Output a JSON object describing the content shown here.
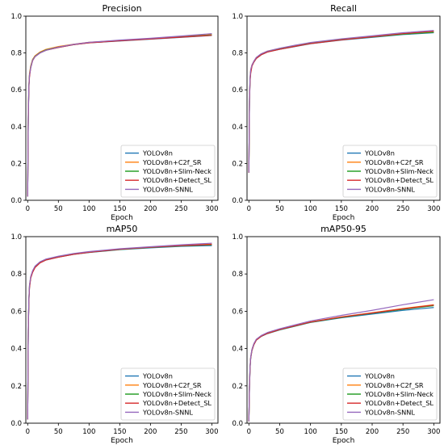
{
  "chart_data": [
    {
      "type": "line",
      "title": "Precision",
      "xlabel": "Epoch",
      "ylabel": "",
      "xlim": [
        -3,
        310
      ],
      "ylim": [
        0,
        1.0
      ],
      "xticks": [
        0,
        50,
        100,
        150,
        200,
        250,
        300
      ],
      "yticks": [
        0.0,
        0.2,
        0.4,
        0.6,
        0.8,
        1.0
      ],
      "legend": "lower-right",
      "x": [
        0,
        1,
        2,
        3,
        5,
        8,
        12,
        20,
        30,
        50,
        75,
        100,
        150,
        200,
        250,
        300
      ],
      "series": [
        {
          "name": "YOLOv8n",
          "color": "#1f77b4",
          "values": [
            0.02,
            0.45,
            0.62,
            0.68,
            0.72,
            0.76,
            0.78,
            0.8,
            0.815,
            0.83,
            0.845,
            0.855,
            0.865,
            0.875,
            0.885,
            0.895
          ]
        },
        {
          "name": "YOLOv8n+C2f_SR",
          "color": "#ff7f0e",
          "values": [
            0.02,
            0.47,
            0.63,
            0.69,
            0.73,
            0.765,
            0.785,
            0.805,
            0.82,
            0.835,
            0.848,
            0.858,
            0.868,
            0.878,
            0.889,
            0.9
          ]
        },
        {
          "name": "YOLOv8n+Slim-Neck",
          "color": "#2ca02c",
          "values": [
            0.02,
            0.46,
            0.62,
            0.68,
            0.725,
            0.762,
            0.782,
            0.802,
            0.817,
            0.832,
            0.846,
            0.856,
            0.867,
            0.877,
            0.887,
            0.898
          ]
        },
        {
          "name": "YOLOv8n+Detect_SL",
          "color": "#d62728",
          "values": [
            0.02,
            0.44,
            0.61,
            0.67,
            0.72,
            0.758,
            0.78,
            0.8,
            0.815,
            0.83,
            0.845,
            0.855,
            0.866,
            0.876,
            0.886,
            0.896
          ]
        },
        {
          "name": "YOLOv8n-SNNL",
          "color": "#9467bd",
          "values": [
            0.02,
            0.45,
            0.62,
            0.68,
            0.72,
            0.76,
            0.78,
            0.8,
            0.815,
            0.832,
            0.847,
            0.858,
            0.87,
            0.88,
            0.892,
            0.905
          ]
        }
      ]
    },
    {
      "type": "line",
      "title": "Recall",
      "xlabel": "Epoch",
      "ylabel": "",
      "xlim": [
        -3,
        310
      ],
      "ylim": [
        0,
        1.0
      ],
      "xticks": [
        0,
        50,
        100,
        150,
        200,
        250,
        300
      ],
      "yticks": [
        0.0,
        0.2,
        0.4,
        0.6,
        0.8,
        1.0
      ],
      "legend": "lower-right",
      "x": [
        0,
        1,
        2,
        3,
        5,
        8,
        12,
        20,
        30,
        50,
        75,
        100,
        150,
        200,
        250,
        300
      ],
      "series": [
        {
          "name": "YOLOv8n",
          "color": "#1f77b4",
          "values": [
            0.15,
            0.55,
            0.66,
            0.7,
            0.73,
            0.75,
            0.77,
            0.79,
            0.805,
            0.82,
            0.835,
            0.85,
            0.87,
            0.885,
            0.9,
            0.91
          ]
        },
        {
          "name": "YOLOv8n+C2f_SR",
          "color": "#ff7f0e",
          "values": [
            0.15,
            0.56,
            0.67,
            0.71,
            0.735,
            0.755,
            0.775,
            0.795,
            0.81,
            0.825,
            0.84,
            0.855,
            0.875,
            0.89,
            0.905,
            0.915
          ]
        },
        {
          "name": "YOLOv8n+Slim-Neck",
          "color": "#2ca02c",
          "values": [
            0.15,
            0.55,
            0.66,
            0.7,
            0.732,
            0.752,
            0.772,
            0.792,
            0.807,
            0.822,
            0.837,
            0.852,
            0.872,
            0.887,
            0.902,
            0.912
          ]
        },
        {
          "name": "YOLOv8n+Detect_SL",
          "color": "#d62728",
          "values": [
            0.15,
            0.54,
            0.65,
            0.69,
            0.728,
            0.75,
            0.77,
            0.79,
            0.805,
            0.82,
            0.836,
            0.851,
            0.871,
            0.888,
            0.905,
            0.918
          ]
        },
        {
          "name": "YOLOv8n-SNNL",
          "color": "#9467bd",
          "values": [
            0.15,
            0.56,
            0.67,
            0.71,
            0.735,
            0.755,
            0.776,
            0.796,
            0.81,
            0.826,
            0.842,
            0.857,
            0.877,
            0.893,
            0.91,
            0.922
          ]
        }
      ]
    },
    {
      "type": "line",
      "title": "mAP50",
      "xlabel": "Epoch",
      "ylabel": "",
      "xlim": [
        -3,
        310
      ],
      "ylim": [
        0,
        1.0
      ],
      "xticks": [
        0,
        50,
        100,
        150,
        200,
        250,
        300
      ],
      "yticks": [
        0.0,
        0.2,
        0.4,
        0.6,
        0.8,
        1.0
      ],
      "legend": "lower-right",
      "x": [
        0,
        1,
        2,
        3,
        5,
        8,
        12,
        20,
        30,
        50,
        75,
        100,
        150,
        200,
        250,
        300
      ],
      "series": [
        {
          "name": "YOLOv8n",
          "color": "#1f77b4",
          "values": [
            0.02,
            0.5,
            0.66,
            0.73,
            0.78,
            0.81,
            0.835,
            0.86,
            0.875,
            0.89,
            0.905,
            0.915,
            0.93,
            0.94,
            0.948,
            0.952
          ]
        },
        {
          "name": "YOLOv8n+C2f_SR",
          "color": "#ff7f0e",
          "values": [
            0.02,
            0.51,
            0.67,
            0.74,
            0.785,
            0.815,
            0.84,
            0.863,
            0.878,
            0.893,
            0.908,
            0.918,
            0.933,
            0.944,
            0.953,
            0.96
          ]
        },
        {
          "name": "YOLOv8n+Slim-Neck",
          "color": "#2ca02c",
          "values": [
            0.02,
            0.5,
            0.665,
            0.735,
            0.782,
            0.812,
            0.837,
            0.861,
            0.876,
            0.891,
            0.906,
            0.916,
            0.931,
            0.942,
            0.95,
            0.956
          ]
        },
        {
          "name": "YOLOv8n+Detect_SL",
          "color": "#d62728",
          "values": [
            0.02,
            0.49,
            0.655,
            0.725,
            0.778,
            0.808,
            0.834,
            0.859,
            0.875,
            0.89,
            0.905,
            0.916,
            0.932,
            0.943,
            0.952,
            0.958
          ]
        },
        {
          "name": "YOLOv8n-SNNL",
          "color": "#9467bd",
          "values": [
            0.02,
            0.51,
            0.67,
            0.74,
            0.787,
            0.817,
            0.842,
            0.865,
            0.88,
            0.895,
            0.91,
            0.92,
            0.935,
            0.946,
            0.956,
            0.965
          ]
        }
      ]
    },
    {
      "type": "line",
      "title": "mAP50-95",
      "xlabel": "Epoch",
      "ylabel": "",
      "xlim": [
        -3,
        310
      ],
      "ylim": [
        0,
        1.0
      ],
      "xticks": [
        0,
        50,
        100,
        150,
        200,
        250,
        300
      ],
      "yticks": [
        0.0,
        0.2,
        0.4,
        0.6,
        0.8,
        1.0
      ],
      "legend": "lower-right",
      "x": [
        0,
        1,
        2,
        3,
        5,
        8,
        12,
        20,
        30,
        50,
        75,
        100,
        150,
        200,
        250,
        300
      ],
      "series": [
        {
          "name": "YOLOv8n",
          "color": "#1f77b4",
          "values": [
            0.01,
            0.2,
            0.3,
            0.35,
            0.39,
            0.42,
            0.445,
            0.465,
            0.48,
            0.5,
            0.52,
            0.54,
            0.565,
            0.585,
            0.605,
            0.62
          ]
        },
        {
          "name": "YOLOv8n+C2f_SR",
          "color": "#ff7f0e",
          "values": [
            0.01,
            0.21,
            0.31,
            0.355,
            0.395,
            0.425,
            0.448,
            0.468,
            0.483,
            0.503,
            0.523,
            0.543,
            0.57,
            0.592,
            0.615,
            0.635
          ]
        },
        {
          "name": "YOLOv8n+Slim-Neck",
          "color": "#2ca02c",
          "values": [
            0.01,
            0.2,
            0.305,
            0.352,
            0.392,
            0.422,
            0.446,
            0.466,
            0.481,
            0.501,
            0.521,
            0.541,
            0.567,
            0.589,
            0.61,
            0.63
          ]
        },
        {
          "name": "YOLOv8n+Detect_SL",
          "color": "#d62728",
          "values": [
            0.01,
            0.19,
            0.3,
            0.35,
            0.39,
            0.42,
            0.445,
            0.466,
            0.481,
            0.502,
            0.522,
            0.542,
            0.569,
            0.591,
            0.613,
            0.633
          ]
        },
        {
          "name": "YOLOv8n-SNNL",
          "color": "#9467bd",
          "values": [
            0.01,
            0.21,
            0.31,
            0.356,
            0.396,
            0.426,
            0.45,
            0.47,
            0.486,
            0.506,
            0.527,
            0.548,
            0.578,
            0.605,
            0.635,
            0.662
          ]
        }
      ]
    }
  ]
}
